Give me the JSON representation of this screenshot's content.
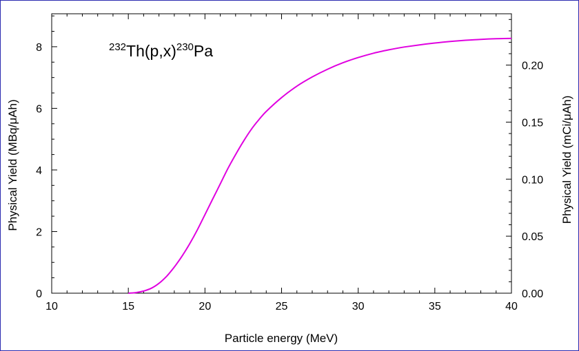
{
  "chart_data": {
    "type": "line",
    "reaction_label": {
      "target_mass": "232",
      "target": "Th",
      "channel": "(p,x)",
      "product_mass": "230",
      "product": "Pa"
    },
    "xlabel": "Particle energy (MeV)",
    "ylabel_left": "Physical Yield (MBq/μAh)",
    "ylabel_right": "Physical Yield (mCi/μAh)",
    "xlim": [
      10,
      40
    ],
    "ylim_left": [
      0,
      9.07
    ],
    "ylim_right": [
      0,
      0.245
    ],
    "x_ticks": [
      "10",
      "15",
      "20",
      "25",
      "30",
      "35",
      "40"
    ],
    "y_ticks_left": [
      "0",
      "2",
      "4",
      "6",
      "8"
    ],
    "y_ticks_right": [
      "0.00",
      "0.05",
      "0.10",
      "0.15",
      "0.20"
    ],
    "grid": false,
    "line_color": "#e000e0",
    "axis_color": "#000000",
    "frame_color": "#2a2ab0",
    "series": [
      {
        "x": [
          15,
          15.5,
          16,
          16.5,
          17,
          17.5,
          18,
          18.5,
          19,
          19.5,
          20,
          20.5,
          21,
          21.5,
          22,
          22.5,
          23,
          23.5,
          24,
          25,
          26,
          27,
          28,
          29,
          30,
          31,
          32,
          33,
          34,
          35,
          36,
          37,
          38,
          39,
          40
        ],
        "values": [
          0,
          0.02,
          0.07,
          0.16,
          0.32,
          0.55,
          0.85,
          1.2,
          1.6,
          2.05,
          2.55,
          3.05,
          3.55,
          4.05,
          4.5,
          4.92,
          5.3,
          5.62,
          5.9,
          6.35,
          6.72,
          7.02,
          7.27,
          7.48,
          7.65,
          7.79,
          7.9,
          7.99,
          8.06,
          8.12,
          8.17,
          8.21,
          8.24,
          8.26,
          8.27
        ]
      }
    ]
  }
}
